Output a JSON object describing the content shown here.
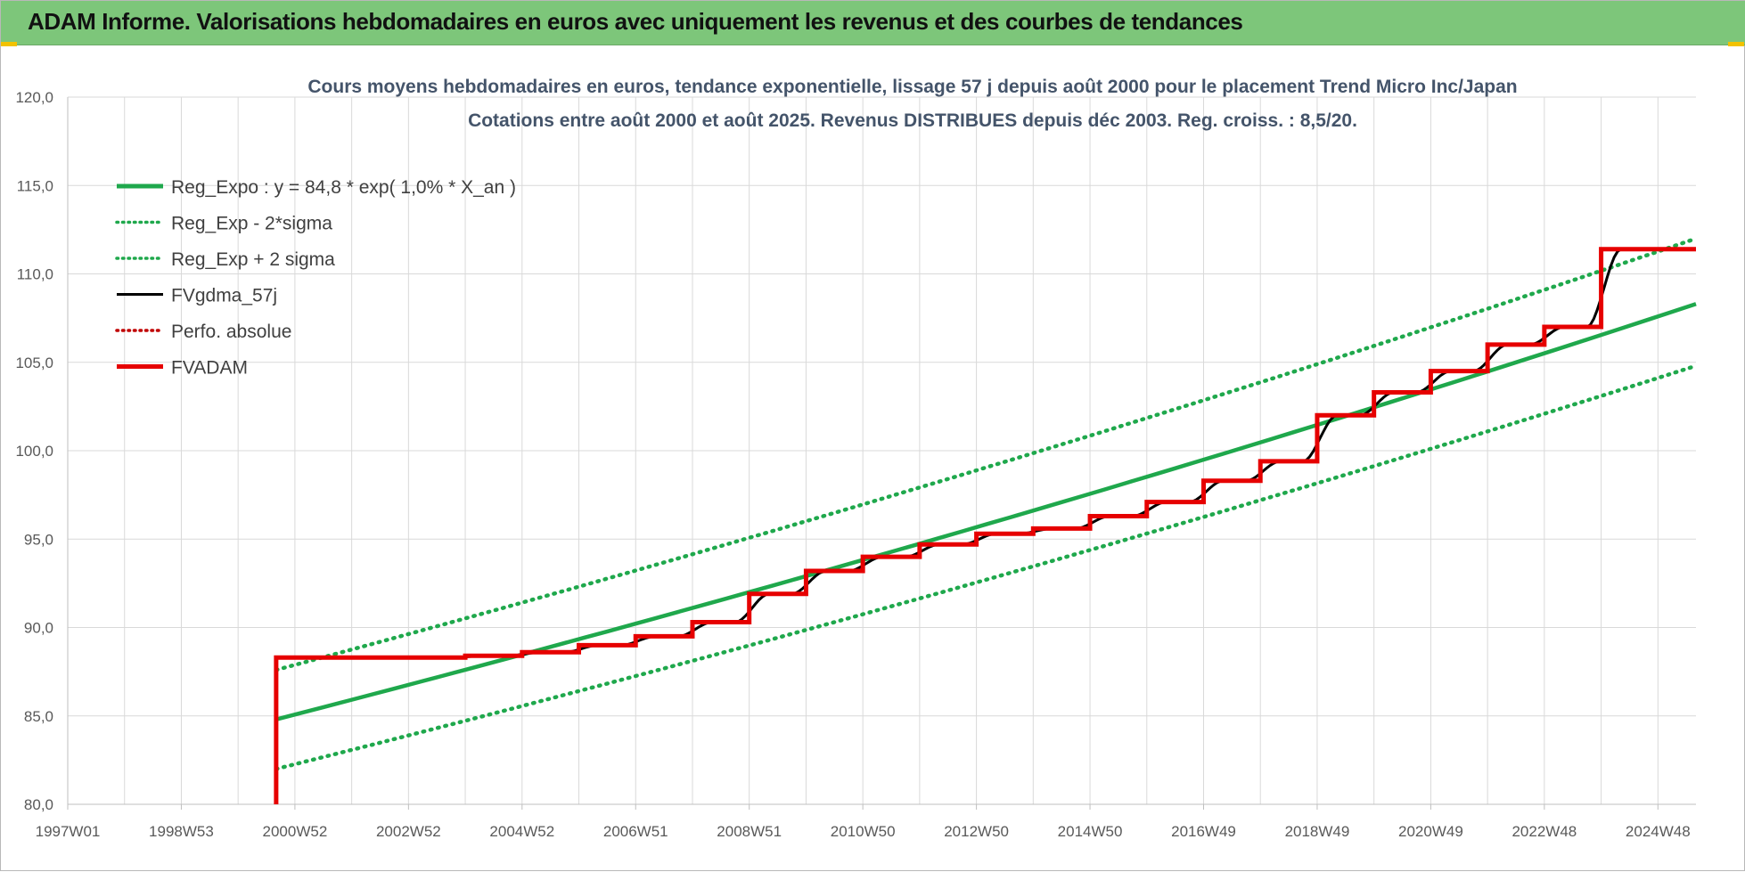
{
  "banner": {
    "title": "ADAM Informe. Valorisations hebdomadaires en euros avec uniquement les revenus et des courbes de tendances"
  },
  "colors": {
    "banner_bg": "#7dc67a",
    "trend_green": "#1fa84c",
    "fvgdma_black": "#000000",
    "fvadam_red": "#e60000",
    "perfo_red": "#c00000",
    "grid": "#d9d9d9",
    "title_text": "#44546a"
  },
  "chart_data": {
    "type": "line",
    "title_line1": "Cours moyens hebdomadaires en euros, tendance exponentielle, lissage 57 j depuis août 2000 pour le placement Trend Micro Inc/Japan",
    "title_line2": "Cotations entre août 2000 et août 2025. Revenus DISTRIBUES depuis déc 2003. Reg. croiss. : 8,5/20.",
    "xlabel": "",
    "ylabel": "",
    "x_range": [
      1997.0,
      2025.67
    ],
    "ylim": [
      80,
      120
    ],
    "y_ticks": [
      "80,0",
      "85,0",
      "90,0",
      "95,0",
      "100,0",
      "105,0",
      "110,0",
      "115,0",
      "120,0"
    ],
    "x_tick_labels": [
      "1997W01",
      "1998W53",
      "2000W52",
      "2002W52",
      "2004W52",
      "2006W51",
      "2008W51",
      "2010W50",
      "2012W50",
      "2014W50",
      "2016W49",
      "2018W49",
      "2020W49",
      "2022W48",
      "2024W48"
    ],
    "grid": true,
    "legend_position": "top-left",
    "legend": [
      {
        "label": "Reg_Expo : y = 84,8 * exp( 1,0% *  X_an )",
        "style": "solid-thick",
        "color": "#1fa84c"
      },
      {
        "label": "Reg_Exp - 2*sigma",
        "style": "dotted",
        "color": "#1fa84c"
      },
      {
        "label": "Reg_Exp + 2 sigma",
        "style": "dotted",
        "color": "#1fa84c"
      },
      {
        "label": "FVgdma_57j",
        "style": "solid",
        "color": "#000000"
      },
      {
        "label": "Perfo. absolue",
        "style": "dotted",
        "color": "#c00000"
      },
      {
        "label": "FVADAM",
        "style": "solid-thick",
        "color": "#e60000"
      }
    ],
    "series": [
      {
        "name": "Reg_Expo : y = 84,8 * exp( 1,0% *  X_an )",
        "x": [
          2000.67,
          2025.67
        ],
        "values": [
          84.8,
          108.3
        ]
      },
      {
        "name": "Reg_Exp - 2*sigma",
        "x": [
          2000.67,
          2025.67
        ],
        "values": [
          82.0,
          104.8
        ]
      },
      {
        "name": "Reg_Exp + 2 sigma",
        "x": [
          2000.67,
          2025.67
        ],
        "values": [
          87.6,
          112.0
        ]
      },
      {
        "name": "FVADAM",
        "start": {
          "x": 2000.67,
          "y": 80.0
        },
        "steps": [
          {
            "x": 2000.67,
            "y": 88.3
          },
          {
            "x": 2004.0,
            "y": 88.4
          },
          {
            "x": 2005.0,
            "y": 88.6
          },
          {
            "x": 2006.0,
            "y": 89.0
          },
          {
            "x": 2007.0,
            "y": 89.5
          },
          {
            "x": 2008.0,
            "y": 90.3
          },
          {
            "x": 2009.0,
            "y": 91.9
          },
          {
            "x": 2010.0,
            "y": 93.2
          },
          {
            "x": 2011.0,
            "y": 94.0
          },
          {
            "x": 2012.0,
            "y": 94.7
          },
          {
            "x": 2013.0,
            "y": 95.3
          },
          {
            "x": 2014.0,
            "y": 95.6
          },
          {
            "x": 2015.0,
            "y": 96.3
          },
          {
            "x": 2016.0,
            "y": 97.1
          },
          {
            "x": 2017.0,
            "y": 98.3
          },
          {
            "x": 2018.0,
            "y": 99.4
          },
          {
            "x": 2019.0,
            "y": 102.0
          },
          {
            "x": 2020.0,
            "y": 103.3
          },
          {
            "x": 2021.0,
            "y": 104.5
          },
          {
            "x": 2022.0,
            "y": 106.0
          },
          {
            "x": 2023.0,
            "y": 107.0
          },
          {
            "x": 2024.0,
            "y": 111.4
          }
        ],
        "end_x": 2025.67
      }
    ]
  }
}
